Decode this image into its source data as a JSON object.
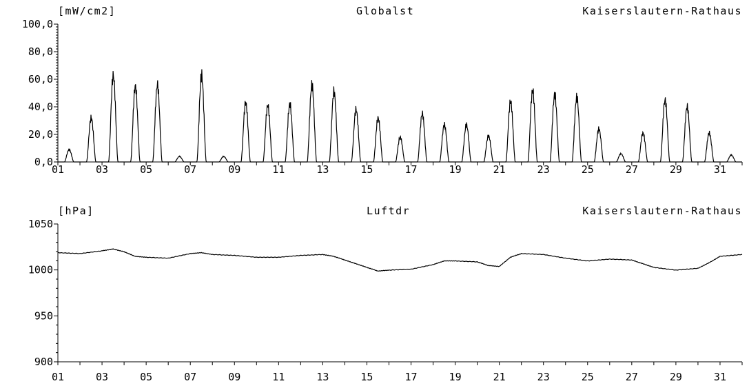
{
  "chart_data": [
    {
      "type": "line",
      "title": "Globalst",
      "station": "Kaiserslautern-Rathaus",
      "ylabel": "[mW/cm2]",
      "ylim": [
        0,
        100
      ],
      "y_ticks": [
        "0,0",
        "20,0",
        "40,0",
        "60,0",
        "80,0",
        "100,0"
      ],
      "xlim": [
        1,
        32
      ],
      "x_ticks": [
        "01",
        "03",
        "05",
        "07",
        "09",
        "11",
        "13",
        "15",
        "17",
        "19",
        "21",
        "23",
        "25",
        "27",
        "29",
        "31"
      ],
      "daily_peak": [
        {
          "day": 1,
          "peak": 9
        },
        {
          "day": 2,
          "peak": 32
        },
        {
          "day": 3,
          "peak": 63
        },
        {
          "day": 4,
          "peak": 55
        },
        {
          "day": 5,
          "peak": 56
        },
        {
          "day": 6,
          "peak": 4
        },
        {
          "day": 7,
          "peak": 63
        },
        {
          "day": 8,
          "peak": 4
        },
        {
          "day": 9,
          "peak": 43
        },
        {
          "day": 10,
          "peak": 41
        },
        {
          "day": 11,
          "peak": 42
        },
        {
          "day": 12,
          "peak": 56
        },
        {
          "day": 13,
          "peak": 51
        },
        {
          "day": 14,
          "peak": 38
        },
        {
          "day": 15,
          "peak": 32
        },
        {
          "day": 16,
          "peak": 18
        },
        {
          "day": 17,
          "peak": 35
        },
        {
          "day": 18,
          "peak": 27
        },
        {
          "day": 19,
          "peak": 27
        },
        {
          "day": 20,
          "peak": 19
        },
        {
          "day": 21,
          "peak": 44
        },
        {
          "day": 22,
          "peak": 52
        },
        {
          "day": 23,
          "peak": 49
        },
        {
          "day": 24,
          "peak": 47
        },
        {
          "day": 25,
          "peak": 24
        },
        {
          "day": 26,
          "peak": 6
        },
        {
          "day": 27,
          "peak": 21
        },
        {
          "day": 28,
          "peak": 45
        },
        {
          "day": 29,
          "peak": 40
        },
        {
          "day": 30,
          "peak": 21
        },
        {
          "day": 31,
          "peak": 5
        }
      ]
    },
    {
      "type": "line",
      "title": "Luftdr",
      "station": "Kaiserslautern-Rathaus",
      "ylabel": "[hPa]",
      "ylim": [
        900,
        1050
      ],
      "y_ticks": [
        "900",
        "950",
        "1000",
        "1050"
      ],
      "xlim": [
        1,
        32
      ],
      "x_ticks": [
        "01",
        "03",
        "05",
        "07",
        "09",
        "11",
        "13",
        "15",
        "17",
        "19",
        "21",
        "23",
        "25",
        "27",
        "29",
        "31"
      ],
      "points": [
        [
          1.0,
          1019
        ],
        [
          2.0,
          1018
        ],
        [
          3.0,
          1021
        ],
        [
          3.5,
          1023
        ],
        [
          4.0,
          1020
        ],
        [
          4.5,
          1015
        ],
        [
          5.0,
          1014
        ],
        [
          6.0,
          1013
        ],
        [
          7.0,
          1018
        ],
        [
          7.5,
          1019
        ],
        [
          8.0,
          1017
        ],
        [
          9.0,
          1016
        ],
        [
          10.0,
          1014
        ],
        [
          11.0,
          1014
        ],
        [
          12.0,
          1016
        ],
        [
          13.0,
          1017
        ],
        [
          13.5,
          1015
        ],
        [
          14.0,
          1011
        ],
        [
          14.5,
          1007
        ],
        [
          15.0,
          1003
        ],
        [
          15.5,
          999
        ],
        [
          16.0,
          1000
        ],
        [
          17.0,
          1001
        ],
        [
          18.0,
          1006
        ],
        [
          18.5,
          1010
        ],
        [
          19.0,
          1010
        ],
        [
          20.0,
          1009
        ],
        [
          20.5,
          1005
        ],
        [
          21.0,
          1004
        ],
        [
          21.5,
          1014
        ],
        [
          22.0,
          1018
        ],
        [
          23.0,
          1017
        ],
        [
          24.0,
          1013
        ],
        [
          25.0,
          1010
        ],
        [
          26.0,
          1012
        ],
        [
          27.0,
          1011
        ],
        [
          27.5,
          1007
        ],
        [
          28.0,
          1003
        ],
        [
          29.0,
          1000
        ],
        [
          30.0,
          1002
        ],
        [
          30.5,
          1008
        ],
        [
          31.0,
          1015
        ],
        [
          32.0,
          1017
        ]
      ]
    }
  ]
}
